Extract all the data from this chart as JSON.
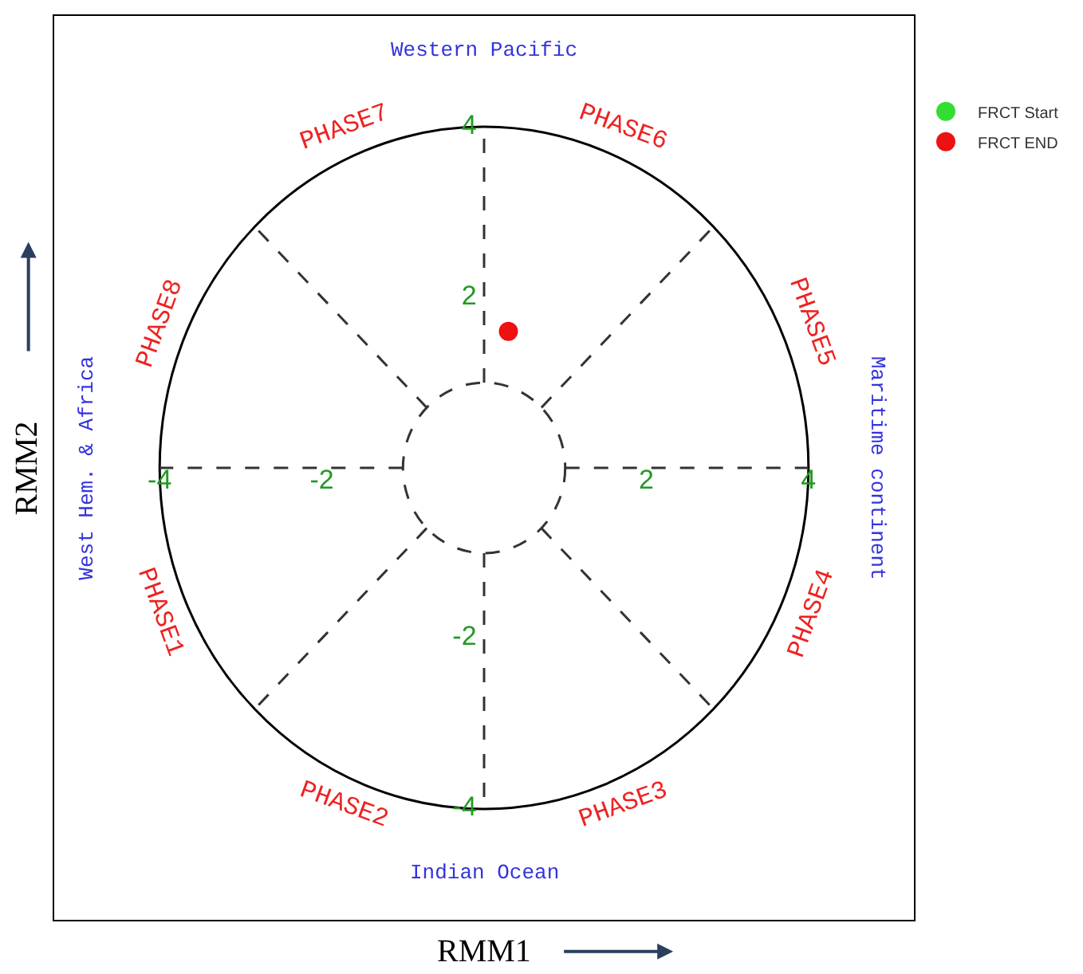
{
  "chart_data": {
    "type": "scatter",
    "xlabel": "RMM1",
    "ylabel": "RMM2",
    "xlim": [
      -5.3,
      5.3
    ],
    "ylim": [
      -5.3,
      5.3
    ],
    "xticks": [
      -4,
      -2,
      2,
      4
    ],
    "yticks": [
      -4,
      -2,
      2,
      4
    ],
    "series": [
      {
        "name": "FRCT Start",
        "color": "#33dd33",
        "x": [
          null
        ],
        "values": [
          null
        ]
      },
      {
        "name": "FRCT END",
        "color": "#ee1111",
        "x": [
          0.3
        ],
        "values": [
          1.6
        ]
      }
    ],
    "marker": "circle",
    "legend": "top right",
    "grid": false,
    "annotations": [
      "PHASE1",
      "PHASE2",
      "PHASE3",
      "PHASE4",
      "PHASE5",
      "PHASE6",
      "PHASE7",
      "PHASE8",
      "Western Pacific",
      "Indian Ocean",
      "West Hem. & Africa",
      "Maritime continent"
    ]
  }
}
